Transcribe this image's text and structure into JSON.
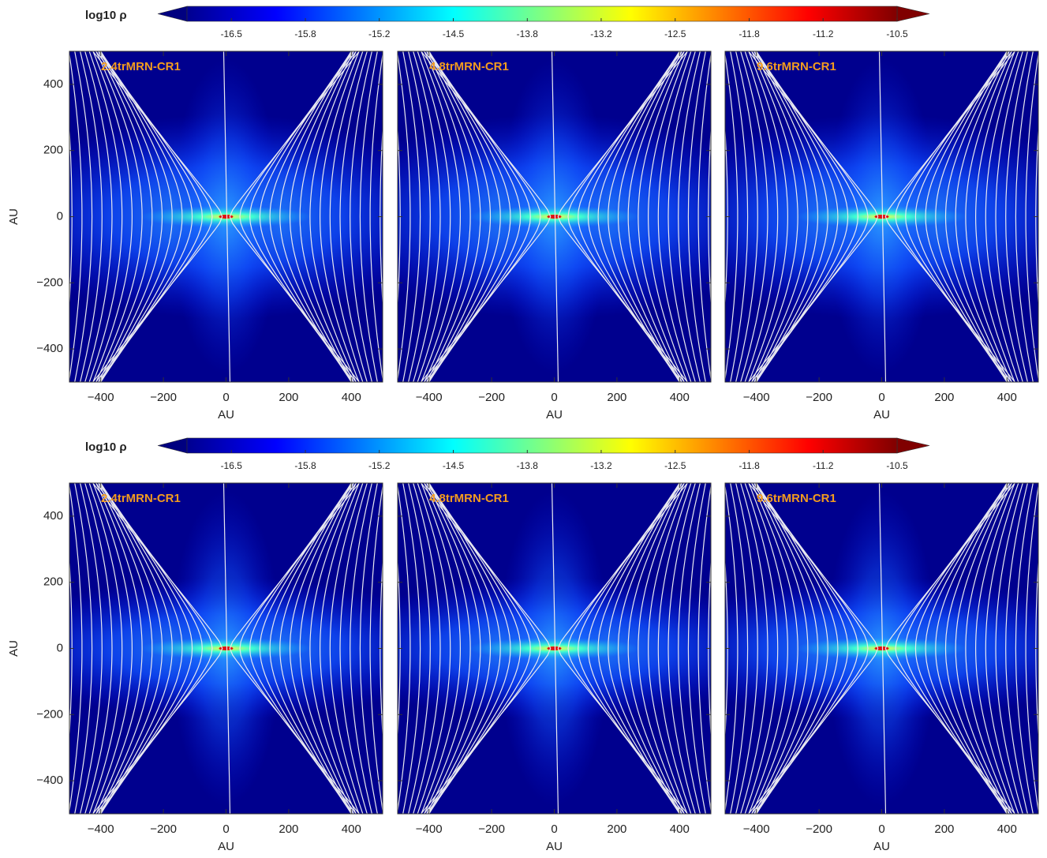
{
  "chart_data": [
    {
      "type": "heatmap",
      "colorbar": {
        "label": "log10 ρ",
        "clim": [
          -16.9,
          -10.5
        ],
        "ticks": [
          -16.5,
          {
            "value": -15.833,
            "label": "-15.8"
          },
          {
            "value": -15.167,
            "label": "-15.2"
          },
          -14.5,
          {
            "value": -13.833,
            "label": "-13.8"
          },
          {
            "value": -13.167,
            "label": "-13.2"
          },
          -12.5,
          {
            "value": -11.833,
            "label": "-11.8"
          },
          {
            "value": -11.167,
            "label": "-11.2"
          },
          -10.5
        ]
      },
      "panels": [
        {
          "title": "2.4trMRN-CR1",
          "xlabel": "AU",
          "ylabel": "AU",
          "xlim": [
            -500,
            500
          ],
          "ylim": [
            -500,
            500
          ],
          "xticks": [
            {
              "value": -400,
              "label": "−400"
            },
            {
              "value": -200,
              "label": "−200"
            },
            0,
            200,
            400
          ],
          "yticks": [
            {
              "value": -400,
              "label": "−400"
            },
            {
              "value": -200,
              "label": "−200"
            },
            0,
            200,
            400
          ]
        },
        {
          "title": "4.8trMRN-CR1",
          "xlabel": "AU",
          "xlim": [
            -500,
            500
          ],
          "ylim": [
            -500,
            500
          ],
          "xticks": [
            {
              "value": -400,
              "label": "−400"
            },
            {
              "value": -200,
              "label": "−200"
            },
            0,
            200,
            400
          ],
          "yticks": [
            -400,
            -200,
            0,
            200,
            400
          ]
        },
        {
          "title": "9.6trMRN-CR1",
          "xlabel": "AU",
          "xlim": [
            -500,
            500
          ],
          "ylim": [
            -500,
            500
          ],
          "xticks": [
            {
              "value": -400,
              "label": "−400"
            },
            {
              "value": -200,
              "label": "−200"
            },
            0,
            200,
            400
          ],
          "yticks": [
            -400,
            -200,
            0,
            200,
            400
          ]
        }
      ]
    },
    {
      "type": "heatmap",
      "colorbar": {
        "label": "log10 ρ",
        "clim": [
          -16.9,
          -10.5
        ],
        "ticks": [
          -16.5,
          {
            "value": -15.833,
            "label": "-15.8"
          },
          {
            "value": -15.167,
            "label": "-15.2"
          },
          -14.5,
          {
            "value": -13.833,
            "label": "-13.8"
          },
          {
            "value": -13.167,
            "label": "-13.2"
          },
          -12.5,
          {
            "value": -11.833,
            "label": "-11.8"
          },
          {
            "value": -11.167,
            "label": "-11.2"
          },
          -10.5
        ]
      },
      "panels": [
        {
          "title": "2.4trMRN-CR1",
          "xlabel": "AU",
          "ylabel": "AU",
          "xlim": [
            -500,
            500
          ],
          "ylim": [
            -500,
            500
          ],
          "xticks": [
            {
              "value": -400,
              "label": "−400"
            },
            {
              "value": -200,
              "label": "−200"
            },
            0,
            200,
            400
          ],
          "yticks": [
            {
              "value": -400,
              "label": "−400"
            },
            {
              "value": -200,
              "label": "−200"
            },
            0,
            200,
            400
          ]
        },
        {
          "title": "4.8trMRN-CR1",
          "xlabel": "AU",
          "xlim": [
            -500,
            500
          ],
          "ylim": [
            -500,
            500
          ],
          "xticks": [
            {
              "value": -400,
              "label": "−400"
            },
            {
              "value": -200,
              "label": "−200"
            },
            0,
            200,
            400
          ],
          "yticks": [
            -400,
            -200,
            0,
            200,
            400
          ]
        },
        {
          "title": "9.6trMRN-CR1",
          "xlabel": "AU",
          "xlim": [
            -500,
            500
          ],
          "ylim": [
            -500,
            500
          ],
          "xticks": [
            {
              "value": -400,
              "label": "−400"
            },
            {
              "value": -200,
              "label": "−200"
            },
            0,
            200,
            400
          ],
          "yticks": [
            -400,
            -200,
            0,
            200,
            400
          ]
        }
      ]
    }
  ]
}
